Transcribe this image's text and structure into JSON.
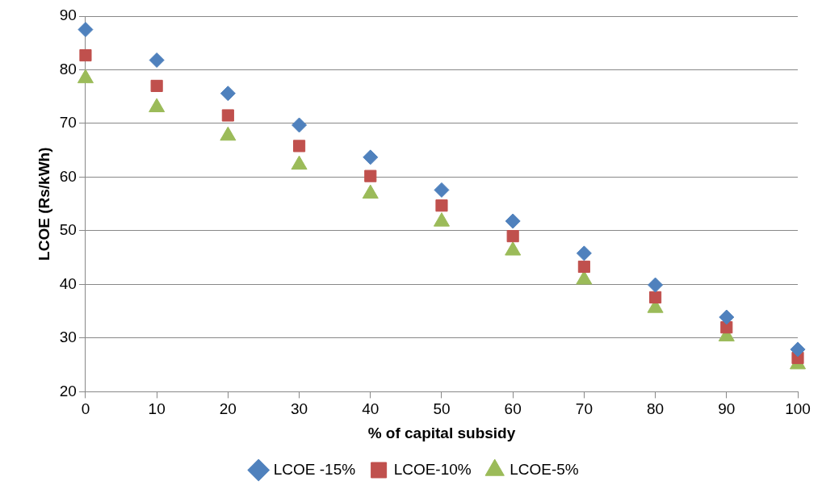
{
  "chart_data": {
    "type": "scatter",
    "xlabel": "% of capital subsidy",
    "ylabel": "LCOE (Rs/kWh)",
    "x": [
      0,
      10,
      20,
      30,
      40,
      50,
      60,
      70,
      80,
      90,
      100
    ],
    "series": [
      {
        "name": "LCOE -15%",
        "color": "#4f81bd",
        "marker": "diamond",
        "values": [
          87.5,
          81.8,
          75.6,
          69.7,
          63.7,
          57.6,
          51.8,
          45.8,
          39.9,
          33.9,
          27.9
        ]
      },
      {
        "name": "LCOE-10%",
        "color": "#c0504d",
        "marker": "square",
        "values": [
          82.7,
          77.0,
          71.5,
          65.8,
          60.2,
          54.7,
          49.0,
          43.3,
          37.6,
          32.0,
          26.3
        ]
      },
      {
        "name": "LCOE-5%",
        "color": "#9bbb59",
        "marker": "triangle",
        "values": [
          78.4,
          73.0,
          67.7,
          62.3,
          56.9,
          51.7,
          46.3,
          40.9,
          35.6,
          30.3,
          25.1
        ]
      }
    ],
    "xlim": [
      0,
      100
    ],
    "xticks": [
      0,
      10,
      20,
      30,
      40,
      50,
      60,
      70,
      80,
      90,
      100
    ],
    "ylim": [
      20,
      90
    ],
    "yticks": [
      20,
      30,
      40,
      50,
      60,
      70,
      80,
      90
    ],
    "grid": "y",
    "legend": "bottom"
  }
}
